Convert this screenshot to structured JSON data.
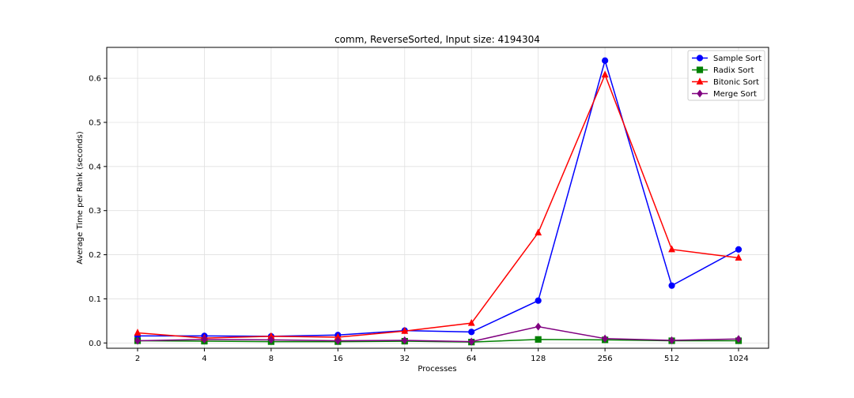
{
  "chart_data": {
    "type": "line",
    "title": "comm, ReverseSorted, Input size: 4194304",
    "xlabel": "Processes",
    "ylabel": "Average Time per Rank (seconds)",
    "x": [
      "2",
      "4",
      "8",
      "16",
      "32",
      "64",
      "128",
      "256",
      "512",
      "1024"
    ],
    "ylim": [
      -0.012,
      0.67
    ],
    "yticks": [
      "0.0",
      "0.1",
      "0.2",
      "0.3",
      "0.4",
      "0.5",
      "0.6"
    ],
    "grid": true,
    "legend_position": "top-right",
    "series": [
      {
        "name": "Sample Sort",
        "color": "#0000ff",
        "marker": "circle",
        "values": [
          0.016,
          0.016,
          0.015,
          0.018,
          0.028,
          0.025,
          0.096,
          0.64,
          0.13,
          0.212
        ]
      },
      {
        "name": "Radix Sort",
        "color": "#008000",
        "marker": "square",
        "values": [
          0.005,
          0.004,
          0.003,
          0.003,
          0.004,
          0.002,
          0.008,
          0.007,
          0.005,
          0.005
        ]
      },
      {
        "name": "Bitonic Sort",
        "color": "#ff0000",
        "marker": "triangle",
        "values": [
          0.023,
          0.011,
          0.015,
          0.013,
          0.027,
          0.045,
          0.25,
          0.608,
          0.212,
          0.193
        ]
      },
      {
        "name": "Merge Sort",
        "color": "#800080",
        "marker": "diamond",
        "values": [
          0.005,
          0.008,
          0.007,
          0.005,
          0.006,
          0.003,
          0.037,
          0.01,
          0.006,
          0.009
        ]
      }
    ]
  }
}
